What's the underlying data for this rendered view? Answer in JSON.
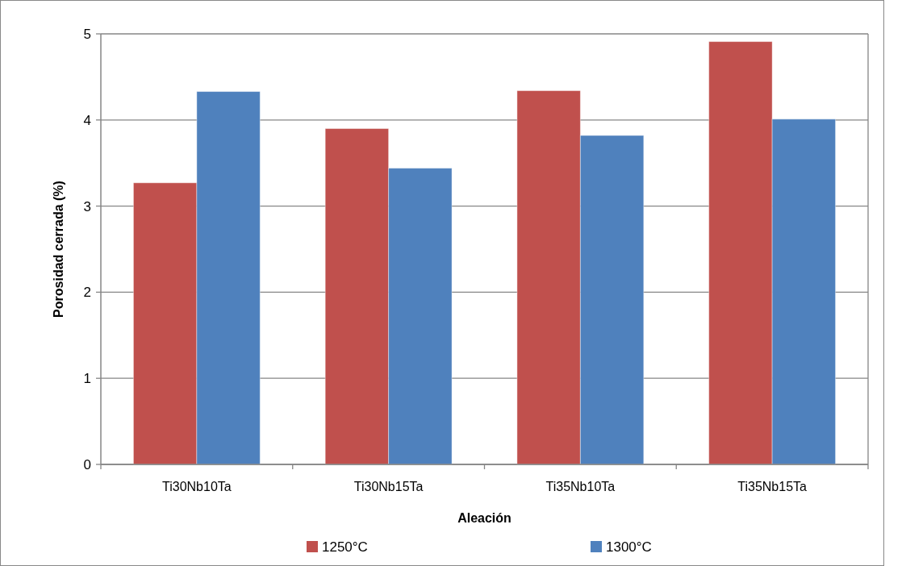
{
  "chart_data": {
    "type": "bar",
    "xlabel": "Aleación",
    "ylabel": "Porosidad cerrada (%)",
    "categories": [
      "Ti30Nb10Ta",
      "Ti30Nb15Ta",
      "Ti35Nb10Ta",
      "Ti35Nb15Ta"
    ],
    "series": [
      {
        "name": "1250°C",
        "color": "#c0504d",
        "values": [
          3.27,
          3.9,
          4.34,
          4.91
        ]
      },
      {
        "name": "1300°C",
        "color": "#4f81bd",
        "values": [
          4.33,
          3.44,
          3.82,
          4.01
        ]
      }
    ],
    "ylim": [
      0,
      5
    ],
    "yticks": [
      0,
      1,
      2,
      3,
      4,
      5
    ],
    "grid": "y",
    "legend": "bottom"
  }
}
